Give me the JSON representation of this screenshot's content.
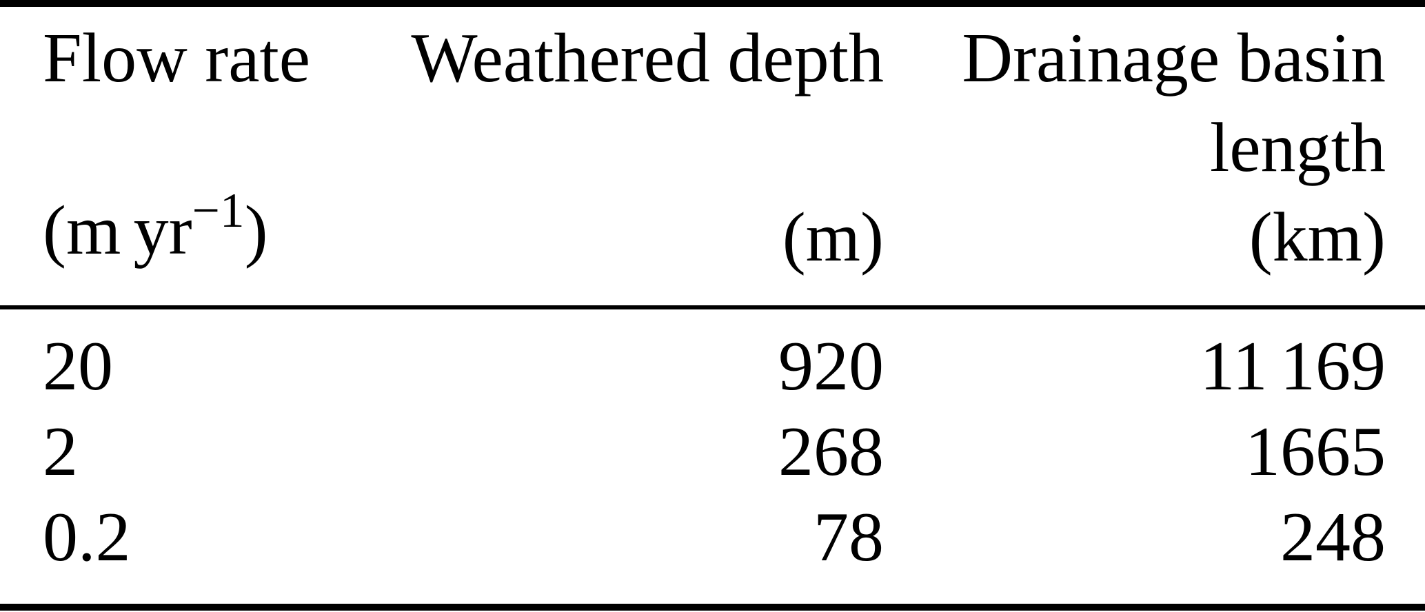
{
  "table": {
    "header": {
      "columns": [
        {
          "title_lines": [
            "Flow rate"
          ],
          "unit": {
            "pre": "(m yr",
            "sup": "−1",
            "post": ")"
          }
        },
        {
          "title_lines": [
            "Weathered depth"
          ],
          "unit": {
            "pre": "(m)",
            "sup": "",
            "post": ""
          }
        },
        {
          "title_lines": [
            "Drainage basin",
            "length"
          ],
          "unit": {
            "pre": "(km)",
            "sup": "",
            "post": ""
          }
        }
      ]
    },
    "rows": [
      {
        "flow_rate": "20",
        "weathered_depth": "920",
        "basin_length": "11 169"
      },
      {
        "flow_rate": "2",
        "weathered_depth": "268",
        "basin_length": "1665"
      },
      {
        "flow_rate": "0.2",
        "weathered_depth": "78",
        "basin_length": "248"
      }
    ]
  },
  "chart_data": {
    "type": "table",
    "title": "",
    "columns": [
      "Flow rate (m yr−1)",
      "Weathered depth (m)",
      "Drainage basin length (km)"
    ],
    "rows": [
      [
        20,
        920,
        11169
      ],
      [
        2,
        268,
        1665
      ],
      [
        0.2,
        78,
        248
      ]
    ]
  }
}
